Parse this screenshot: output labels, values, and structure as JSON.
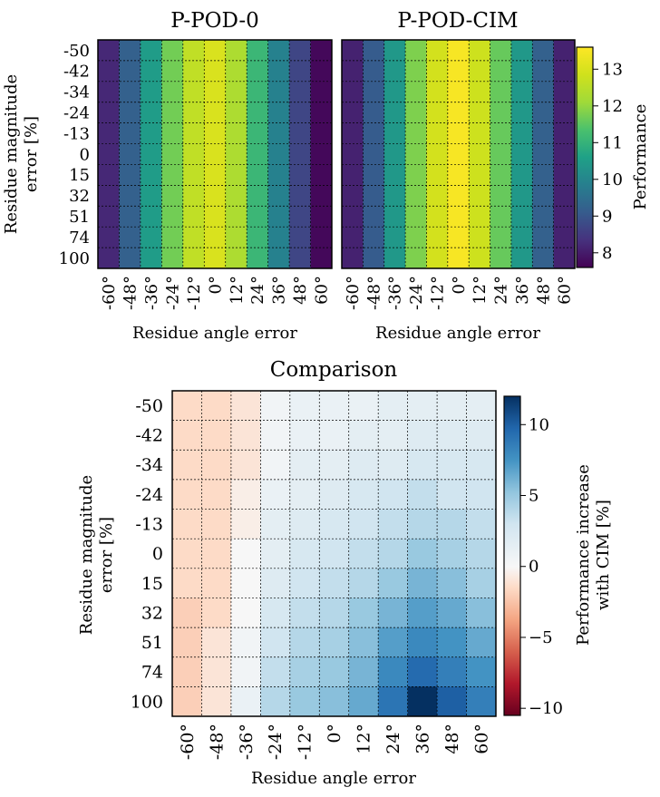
{
  "chart_data": [
    {
      "type": "heatmap",
      "title": "P-POD-0",
      "xlabel": "Residue angle error",
      "ylabel": "Residue magnitude error [%]",
      "x_categories": [
        "-60°",
        "-48°",
        "-36°",
        "-24°",
        "-12°",
        "0°",
        "12°",
        "24°",
        "36°",
        "48°",
        "60°"
      ],
      "y_categories": [
        "-50",
        "-42",
        "-34",
        "-24",
        "-13",
        "0",
        "15",
        "32",
        "51",
        "74",
        "100"
      ],
      "column_values": [
        8.2,
        9.2,
        10.5,
        11.7,
        12.6,
        13.0,
        12.3,
        11.1,
        9.9,
        8.7,
        7.7
      ],
      "colormap": "viridis",
      "clim": [
        7.6,
        13.6
      ]
    },
    {
      "type": "heatmap",
      "title": "P-POD-CIM",
      "xlabel": "Residue angle error",
      "ylabel": "",
      "x_categories": [
        "-60°",
        "-48°",
        "-36°",
        "-24°",
        "-12°",
        "0°",
        "12°",
        "24°",
        "36°",
        "48°",
        "60°"
      ],
      "y_categories": [
        "-50",
        "-42",
        "-34",
        "-24",
        "-13",
        "0",
        "15",
        "32",
        "51",
        "74",
        "100"
      ],
      "column_values": [
        8.1,
        9.1,
        10.4,
        11.8,
        12.9,
        13.5,
        12.8,
        11.6,
        10.4,
        9.2,
        8.1
      ],
      "colorbar": {
        "label": "Performance",
        "ticks": [
          8,
          9,
          10,
          11,
          12,
          13
        ],
        "range": [
          7.6,
          13.6
        ]
      }
    },
    {
      "type": "heatmap",
      "title": "Comparison",
      "xlabel": "Residue angle error",
      "ylabel": "Residue magnitude error [%]",
      "x_categories": [
        "-60°",
        "-48°",
        "-36°",
        "-24°",
        "-12°",
        "0°",
        "12°",
        "24°",
        "36°",
        "48°",
        "60°"
      ],
      "y_categories": [
        "-50",
        "-42",
        "-34",
        "-24",
        "-13",
        "0",
        "15",
        "32",
        "51",
        "74",
        "100"
      ],
      "values": [
        [
          -1.5,
          -1.5,
          -1.0,
          0.5,
          1.0,
          1.0,
          1.0,
          1.5,
          1.5,
          1.5,
          1.5
        ],
        [
          -1.5,
          -1.5,
          -1.0,
          0.5,
          1.0,
          1.0,
          1.5,
          1.5,
          2.0,
          2.0,
          2.0
        ],
        [
          -1.5,
          -1.5,
          -1.0,
          0.5,
          1.5,
          1.5,
          2.0,
          2.0,
          2.5,
          2.5,
          2.5
        ],
        [
          -1.5,
          -1.5,
          -0.5,
          1.0,
          1.5,
          2.0,
          2.5,
          3.0,
          3.5,
          3.0,
          3.0
        ],
        [
          -1.5,
          -1.5,
          -0.5,
          1.5,
          2.0,
          2.5,
          3.0,
          3.5,
          4.0,
          4.0,
          3.5
        ],
        [
          -1.5,
          -1.5,
          0.0,
          1.5,
          2.5,
          3.0,
          3.5,
          4.0,
          5.0,
          4.5,
          4.0
        ],
        [
          -1.5,
          -1.5,
          0.0,
          2.0,
          3.0,
          3.5,
          4.0,
          5.0,
          6.0,
          5.5,
          4.5
        ],
        [
          -2.0,
          -1.5,
          0.0,
          2.5,
          3.5,
          4.0,
          5.0,
          6.0,
          7.0,
          6.5,
          5.5
        ],
        [
          -2.0,
          -1.0,
          0.5,
          3.0,
          4.0,
          4.5,
          5.5,
          7.0,
          8.0,
          7.5,
          6.5
        ],
        [
          -2.0,
          -1.0,
          0.5,
          3.5,
          4.5,
          5.0,
          6.0,
          8.0,
          9.5,
          8.5,
          7.5
        ],
        [
          -2.0,
          -1.0,
          1.0,
          4.0,
          5.0,
          5.5,
          6.5,
          9.0,
          12.0,
          10.0,
          8.5
        ]
      ],
      "colormap": "RdBu",
      "clim": [
        -10.5,
        12.0
      ],
      "colorbar": {
        "label_line1": "Performance increase",
        "label_line2": "with CIM [%]",
        "ticks": [
          -10,
          -5,
          0,
          5,
          10
        ],
        "tick_labels": [
          "−10",
          "−5",
          "0",
          "5",
          "10"
        ]
      }
    }
  ],
  "y_label_lines": [
    "Residue magnitude",
    "error [%]"
  ]
}
